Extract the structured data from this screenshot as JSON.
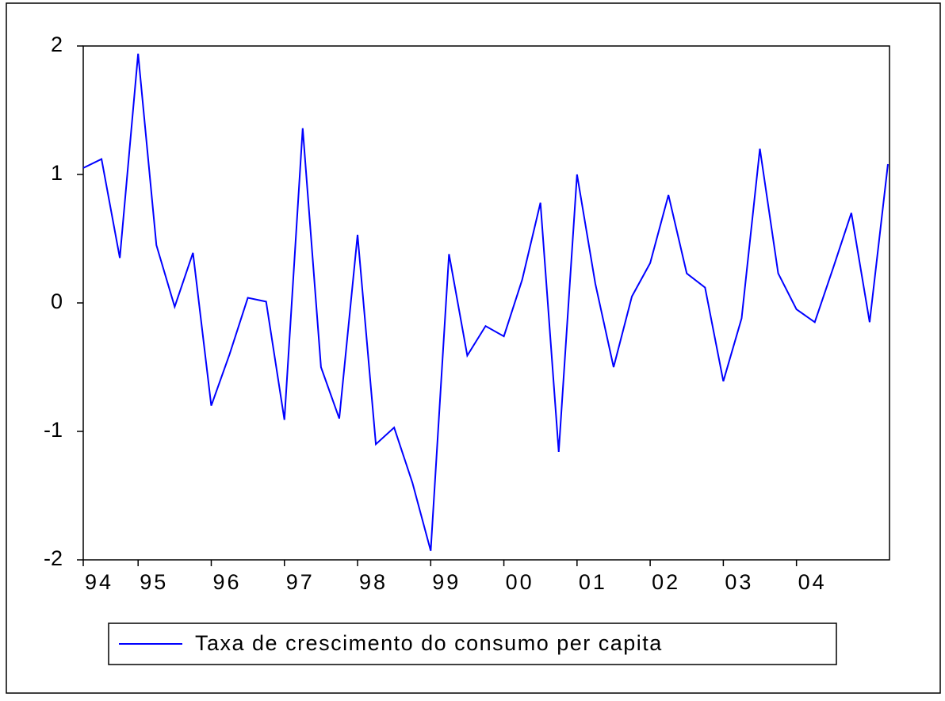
{
  "chart_data": {
    "type": "line",
    "categories": [
      "94",
      null,
      null,
      "95",
      null,
      null,
      null,
      "96",
      null,
      null,
      null,
      "97",
      null,
      null,
      null,
      "98",
      null,
      null,
      null,
      "99",
      null,
      null,
      null,
      "00",
      null,
      null,
      null,
      "01",
      null,
      null,
      null,
      "02",
      null,
      null,
      null,
      "03",
      null,
      null,
      null,
      "04",
      null,
      null,
      null,
      null,
      null
    ],
    "series": [
      {
        "name": "Taxa de crescimento do consumo per capita",
        "color": "#0000ff",
        "values": [
          1.05,
          1.12,
          0.35,
          1.94,
          0.45,
          -0.03,
          0.39,
          -0.8,
          -0.4,
          0.04,
          0.01,
          -0.91,
          1.36,
          -0.5,
          -0.9,
          0.53,
          -1.1,
          -0.97,
          -1.4,
          -1.93,
          0.38,
          -0.41,
          -0.18,
          -0.26,
          0.18,
          0.78,
          -1.16,
          1.0,
          0.15,
          -0.5,
          0.05,
          0.31,
          0.84,
          0.23,
          0.12,
          -0.61,
          -0.12,
          1.2,
          0.23,
          -0.05,
          -0.15,
          0.27,
          0.7,
          -0.15,
          1.08
        ]
      }
    ],
    "ylim": [
      -2,
      2
    ],
    "yticks": [
      -2,
      -1,
      0,
      1,
      2
    ],
    "grid": false,
    "legend": "bottom"
  }
}
